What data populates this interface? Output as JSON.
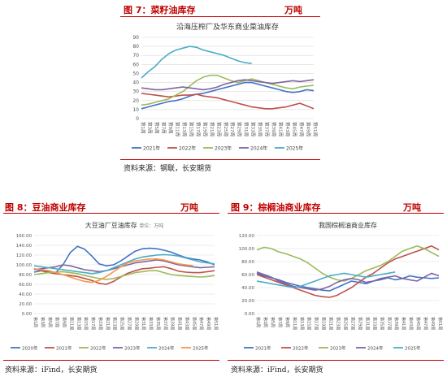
{
  "headers": [
    {
      "title": "图 7：菜籽油库存",
      "unit": "万吨",
      "source": "资料来源：钢联，长安期货"
    },
    {
      "title": "图 8：豆油商业库存",
      "unit": "万吨",
      "source": "资料来源：iFind，长安期货"
    },
    {
      "title": "图 9：棕榈油商业库存",
      "unit": "万吨",
      "source": "资料来源：iFind，长安期货"
    }
  ],
  "weeks52": [
    "第1周",
    "第3周",
    "第5周",
    "第7周",
    "第9周",
    "第11周",
    "第13周",
    "第15周",
    "第17周",
    "第19周",
    "第21周",
    "第23周",
    "第25周",
    "第27周",
    "第29周",
    "第31周",
    "第33周",
    "第35周",
    "第37周",
    "第39周",
    "第41周",
    "第43周",
    "第45周",
    "第47周",
    "第49周",
    "第51周"
  ],
  "chart_data": [
    {
      "type": "line",
      "title": "沿海压榨厂及华东商业菜油库存",
      "ylim": [
        0,
        90
      ],
      "yticks": [
        0,
        10,
        20,
        30,
        40,
        50,
        60,
        70,
        80,
        90
      ],
      "grid": true,
      "legend_position": "bottom",
      "series": [
        {
          "name": "2021年",
          "color": "#4472c4",
          "values": [
            11,
            13,
            15,
            17,
            19,
            20,
            22,
            25,
            27,
            28,
            30,
            32,
            34,
            36,
            38,
            40,
            40,
            38,
            36,
            34,
            32,
            30,
            29,
            30,
            32,
            31
          ]
        },
        {
          "name": "2022年",
          "color": "#c0504d",
          "values": [
            28,
            27,
            26,
            25,
            24,
            25,
            26,
            26,
            27,
            25,
            24,
            23,
            21,
            19,
            17,
            15,
            13,
            12,
            11,
            11,
            12,
            13,
            15,
            17,
            14,
            11
          ]
        },
        {
          "name": "2023年",
          "color": "#9bbb59",
          "values": [
            15,
            16,
            18,
            20,
            22,
            26,
            30,
            36,
            42,
            46,
            48,
            48,
            45,
            42,
            40,
            42,
            44,
            42,
            40,
            38,
            36,
            34,
            33,
            35,
            36,
            37
          ]
        },
        {
          "name": "2024年",
          "color": "#8064a2",
          "values": [
            34,
            33,
            32,
            32,
            33,
            34,
            35,
            34,
            33,
            32,
            33,
            35,
            38,
            40,
            42,
            43,
            42,
            41,
            40,
            39,
            40,
            41,
            42,
            41,
            42,
            43
          ]
        },
        {
          "name": "2025年",
          "color": "#4bacc6",
          "values": [
            45,
            52,
            58,
            66,
            72,
            76,
            78,
            80,
            79,
            76,
            74,
            72,
            70,
            67,
            64,
            62,
            61,
            null,
            null,
            null,
            null,
            null,
            null,
            null,
            null,
            null
          ]
        }
      ]
    },
    {
      "type": "line",
      "title": "大豆油厂豆油库存",
      "subtitle": "单位：万吨",
      "ylim": [
        0,
        160
      ],
      "yticks": [
        "0.00",
        "20.00",
        "40.00",
        "60.00",
        "80.00",
        "100.00",
        "120.00",
        "140.00",
        "160.00"
      ],
      "grid": true,
      "legend_position": "bottom",
      "series": [
        {
          "name": "2020年",
          "color": "#4472c4",
          "values": [
            85,
            88,
            86,
            84,
            100,
            125,
            138,
            132,
            118,
            102,
            98,
            100,
            108,
            118,
            128,
            133,
            134,
            133,
            130,
            126,
            120,
            115,
            112,
            110,
            106,
            100
          ]
        },
        {
          "name": "2021年",
          "color": "#c0504d",
          "values": [
            92,
            88,
            84,
            82,
            80,
            78,
            76,
            72,
            68,
            62,
            60,
            66,
            75,
            83,
            88,
            92,
            93,
            95,
            96,
            92,
            87,
            85,
            84,
            84,
            86,
            88
          ]
        },
        {
          "name": "2022年",
          "color": "#9bbb59",
          "values": [
            80,
            82,
            84,
            85,
            86,
            84,
            82,
            78,
            75,
            72,
            70,
            72,
            76,
            80,
            84,
            86,
            88,
            88,
            84,
            80,
            78,
            77,
            76,
            75,
            76,
            78
          ]
        },
        {
          "name": "2023年",
          "color": "#8064a2",
          "values": [
            90,
            92,
            94,
            96,
            100,
            98,
            94,
            90,
            88,
            86,
            88,
            92,
            96,
            100,
            104,
            106,
            108,
            110,
            108,
            104,
            100,
            98,
            96,
            94,
            95,
            96
          ]
        },
        {
          "name": "2024年",
          "color": "#4bacc6",
          "values": [
            98,
            96,
            94,
            92,
            90,
            88,
            86,
            84,
            82,
            84,
            88,
            94,
            100,
            106,
            112,
            116,
            118,
            120,
            121,
            120,
            118,
            114,
            110,
            106,
            104,
            102
          ]
        },
        {
          "name": "2025年",
          "color": "#f79646",
          "values": [
            92,
            90,
            88,
            84,
            80,
            75,
            70,
            66,
            64,
            68,
            76,
            86,
            96,
            104,
            108,
            110,
            112,
            112,
            110,
            106,
            102,
            100,
            98,
            null,
            null,
            null
          ]
        }
      ]
    },
    {
      "type": "line",
      "title": "我国棕榈油商业库存",
      "ylim": [
        0,
        120
      ],
      "yticks": [
        "0.00",
        "20.00",
        "40.00",
        "60.00",
        "80.00",
        "100.00",
        "120.00"
      ],
      "grid": true,
      "legend_position": "bottom",
      "series": [
        {
          "name": "2021年",
          "color": "#4472c4",
          "values": [
            62,
            58,
            55,
            52,
            48,
            45,
            42,
            40,
            38,
            36,
            35,
            40,
            45,
            50,
            48,
            46,
            50,
            52,
            55,
            52,
            54,
            58,
            56,
            55,
            54,
            55
          ]
        },
        {
          "name": "2022年",
          "color": "#c0504d",
          "values": [
            60,
            56,
            52,
            48,
            44,
            40,
            36,
            32,
            28,
            26,
            25,
            28,
            34,
            40,
            48,
            56,
            62,
            70,
            78,
            84,
            88,
            92,
            96,
            100,
            104,
            98
          ]
        },
        {
          "name": "2023年",
          "color": "#9bbb59",
          "values": [
            98,
            102,
            100,
            95,
            92,
            88,
            84,
            78,
            70,
            62,
            56,
            52,
            50,
            54,
            60,
            66,
            70,
            74,
            80,
            88,
            96,
            100,
            104,
            100,
            94,
            88
          ]
        },
        {
          "name": "2024年",
          "color": "#8064a2",
          "values": [
            64,
            60,
            56,
            50,
            46,
            42,
            40,
            38,
            36,
            38,
            42,
            48,
            52,
            54,
            52,
            48,
            50,
            54,
            56,
            58,
            54,
            52,
            50,
            56,
            62,
            58
          ]
        },
        {
          "name": "2025年",
          "color": "#4bacc6",
          "values": [
            50,
            48,
            46,
            44,
            42,
            40,
            42,
            46,
            50,
            54,
            58,
            60,
            62,
            60,
            58,
            56,
            58,
            60,
            62,
            64,
            null,
            null,
            null,
            null,
            null,
            null
          ]
        }
      ]
    }
  ]
}
